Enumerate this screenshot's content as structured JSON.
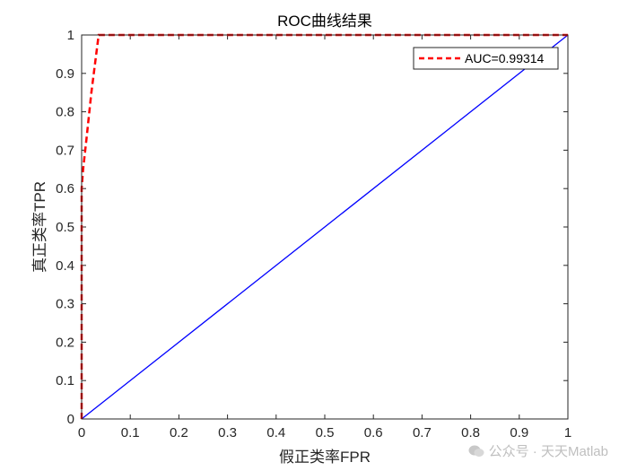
{
  "chart_data": {
    "type": "line",
    "title": "ROC曲线结果",
    "xlabel": "假正类率FPR",
    "ylabel": "真正类率TPR",
    "xlim": [
      0,
      1
    ],
    "ylim": [
      0,
      1
    ],
    "xticks": [
      "0",
      "0.1",
      "0.2",
      "0.3",
      "0.4",
      "0.5",
      "0.6",
      "0.7",
      "0.8",
      "0.9",
      "1"
    ],
    "yticks": [
      "0",
      "0.1",
      "0.2",
      "0.3",
      "0.4",
      "0.5",
      "0.6",
      "0.7",
      "0.8",
      "0.9",
      "1"
    ],
    "grid": false,
    "legend_position": "top-right",
    "series": [
      {
        "name": "AUC=0.99314",
        "color": "#ff0000",
        "style": "dashed",
        "x": [
          0,
          0,
          0.003,
          0.01,
          0.02,
          0.035,
          0.2,
          0.4,
          0.6,
          0.8,
          1
        ],
        "y": [
          0,
          0.6,
          0.65,
          0.73,
          0.85,
          1,
          1,
          1,
          1,
          1,
          1
        ]
      },
      {
        "color": "#0000ff",
        "style": "solid",
        "x": [
          0,
          1
        ],
        "y": [
          0,
          1
        ]
      }
    ]
  },
  "watermark": {
    "icon": "wechat-icon",
    "text": "公众号 · 天天Matlab"
  }
}
